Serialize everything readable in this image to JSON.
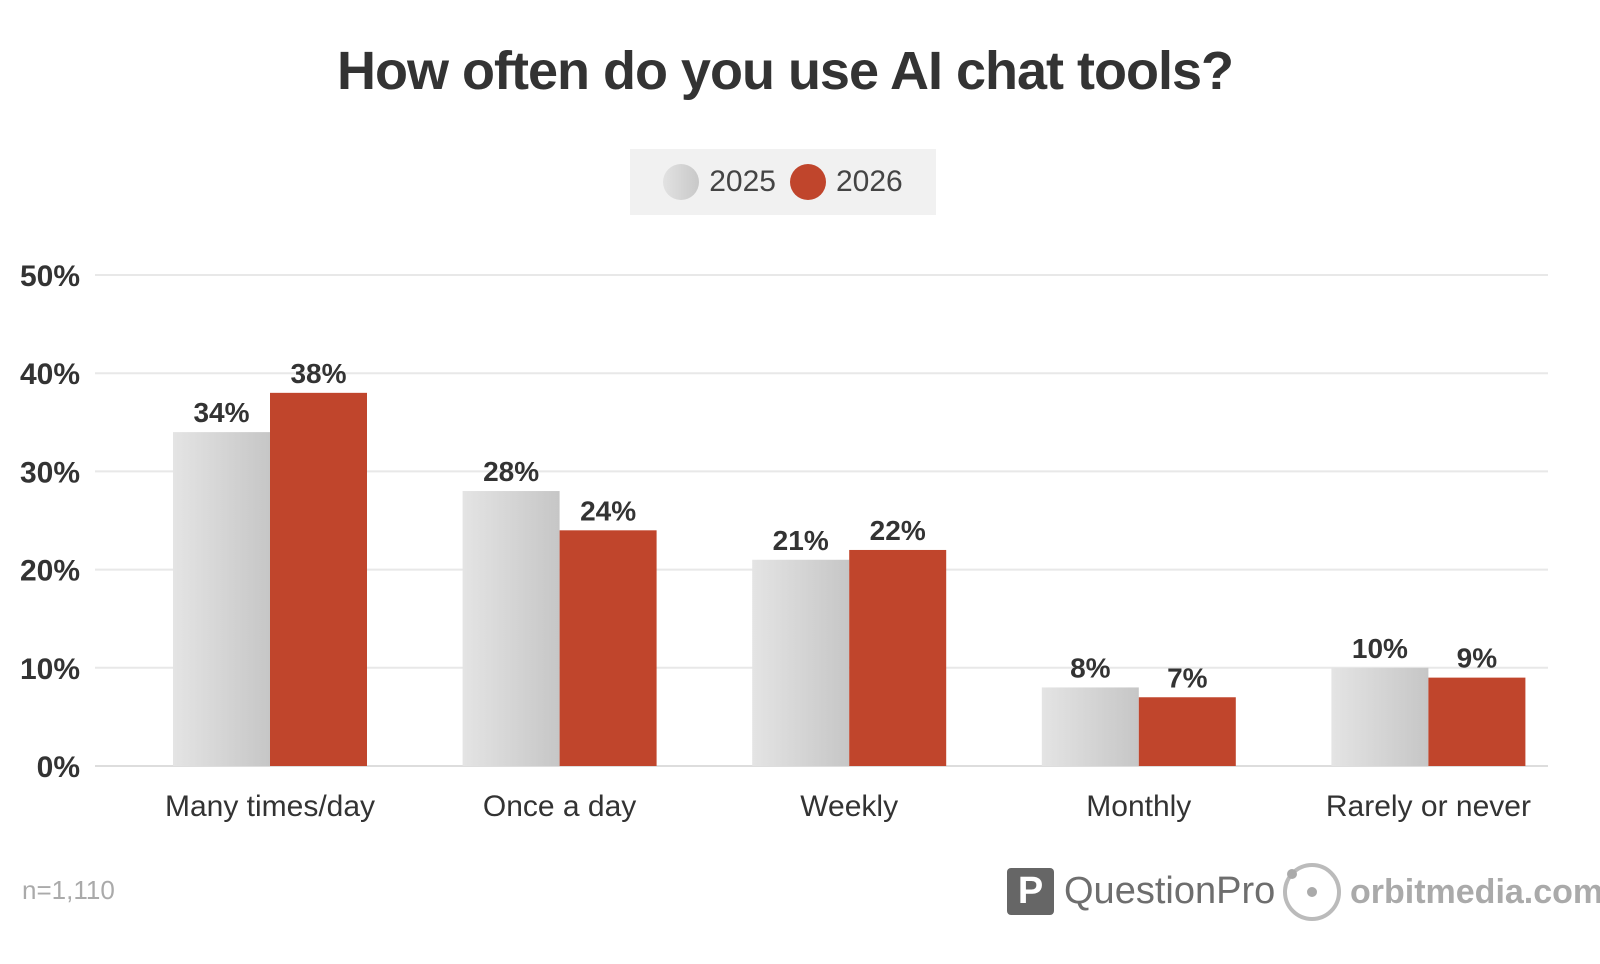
{
  "chart_data": {
    "type": "bar",
    "title": "How often do you use AI chat tools?",
    "categories": [
      "Many times/day",
      "Once a day",
      "Weekly",
      "Monthly",
      "Rarely or never"
    ],
    "series": [
      {
        "name": "2025",
        "values": [
          34,
          28,
          21,
          8,
          10
        ],
        "color": "#d4d4d4"
      },
      {
        "name": "2026",
        "values": [
          38,
          24,
          22,
          7,
          9
        ],
        "color": "#c0452c"
      }
    ],
    "data_labels": [
      [
        "34%",
        "28%",
        "21%",
        "8%",
        "10%"
      ],
      [
        "38%",
        "24%",
        "22%",
        "7%",
        "9%"
      ]
    ],
    "yticks": [
      "0%",
      "10%",
      "20%",
      "30%",
      "40%",
      "50%"
    ],
    "ylim": [
      0,
      50
    ],
    "grid": true,
    "legend_placement": "top-center",
    "xlabel": "",
    "ylabel": ""
  },
  "footnote": "n=1,110",
  "logos": {
    "questionpro": "QuestionPro",
    "orbitmedia": "orbitmedia.com"
  }
}
